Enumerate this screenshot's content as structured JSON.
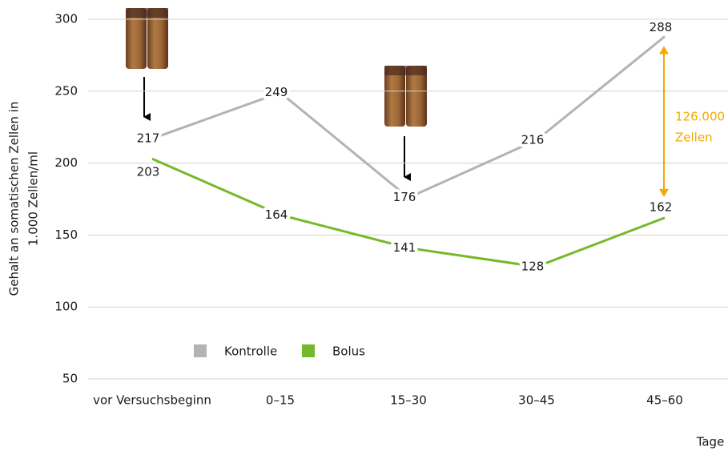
{
  "chart_data": {
    "type": "line",
    "ylabel": [
      "Gehalt an somatischen Zellen in",
      "1.000 Zellen/ml"
    ],
    "xlabel": "Tage",
    "categories": [
      "vor Versuchsbeginn",
      "0–15",
      "15–30",
      "30–45",
      "45–60"
    ],
    "series": [
      {
        "name": "Kontrolle",
        "color": "#b3b3b3",
        "values": [
          217,
          249,
          176,
          216,
          288
        ]
      },
      {
        "name": "Bolus",
        "color": "#76b82a",
        "values": [
          203,
          164,
          141,
          128,
          162
        ]
      }
    ],
    "ylim": [
      50,
      300
    ],
    "yticks": [
      50,
      100,
      150,
      200,
      250,
      300
    ],
    "grid": true,
    "annotation": {
      "text": [
        "126.000",
        "Zellen"
      ],
      "color": "#f2a900"
    }
  }
}
